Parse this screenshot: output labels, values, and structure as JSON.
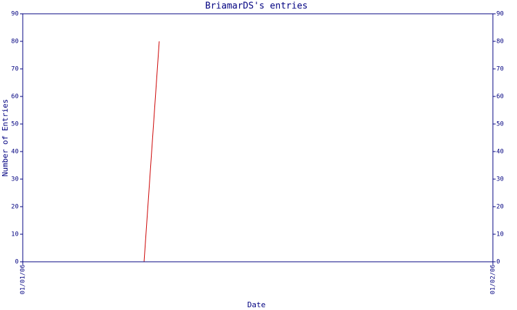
{
  "chart_data": {
    "type": "line",
    "title": "BriamarDS's entries",
    "x_label": "Date",
    "y_label": "Number of Entries",
    "x": [
      "01/01/06",
      "09/01/06",
      "10/01/06"
    ],
    "series": [
      {
        "name": "entries",
        "color": "#cc0000",
        "values": [
          0,
          0,
          80
        ]
      }
    ],
    "xlim": [
      "01/01/06",
      "01/02/06"
    ],
    "xticks": [
      "01/01/06",
      "01/02/06"
    ],
    "ylim": [
      0,
      90
    ],
    "yticks": [
      0,
      10,
      20,
      30,
      40,
      50,
      60,
      70,
      80,
      90
    ]
  }
}
